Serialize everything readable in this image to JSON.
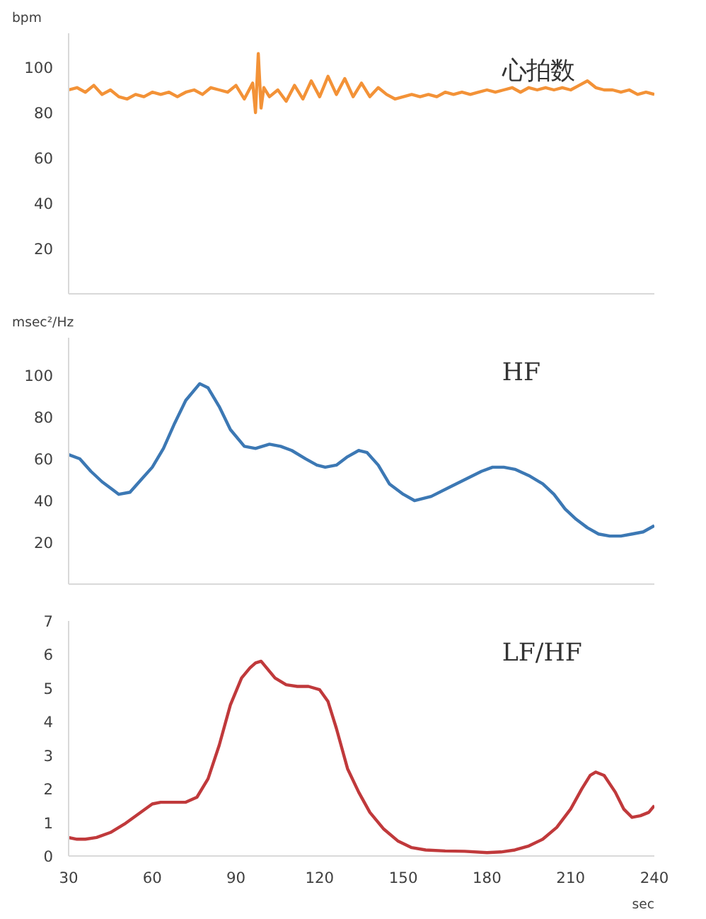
{
  "chart_data": [
    {
      "type": "line",
      "title": "心拍数",
      "ylabel": "bpm",
      "color": "#f39237",
      "xlim": [
        30,
        240
      ],
      "ylim": [
        0,
        115
      ],
      "yticks": [
        20,
        40,
        60,
        80,
        100
      ],
      "tick_labels": "y",
      "grid": false,
      "line_style": "solid",
      "x": [
        30,
        33,
        36,
        39,
        42,
        45,
        48,
        51,
        54,
        57,
        60,
        63,
        66,
        69,
        72,
        75,
        78,
        81,
        84,
        87,
        90,
        93,
        96,
        97,
        98,
        99,
        100,
        102,
        105,
        108,
        111,
        114,
        117,
        120,
        123,
        126,
        129,
        132,
        135,
        138,
        141,
        144,
        147,
        150,
        153,
        156,
        159,
        162,
        165,
        168,
        171,
        174,
        177,
        180,
        183,
        186,
        189,
        192,
        195,
        198,
        201,
        204,
        207,
        210,
        213,
        216,
        219,
        222,
        225,
        228,
        231,
        234,
        237,
        240
      ],
      "values": [
        90,
        91,
        89,
        92,
        88,
        90,
        87,
        86,
        88,
        87,
        89,
        88,
        89,
        87,
        89,
        90,
        88,
        91,
        90,
        89,
        92,
        86,
        93,
        80,
        106,
        82,
        91,
        87,
        90,
        85,
        92,
        86,
        94,
        87,
        96,
        88,
        95,
        87,
        93,
        87,
        91,
        88,
        86,
        87,
        88,
        87,
        88,
        87,
        89,
        88,
        89,
        88,
        89,
        90,
        89,
        90,
        91,
        89,
        91,
        90,
        91,
        90,
        91,
        90,
        92,
        94,
        91,
        90,
        90,
        89,
        90,
        88,
        89,
        88
      ]
    },
    {
      "type": "line",
      "title": "HF",
      "ylabel": "msec²/Hz",
      "color": "#3c78b4",
      "xlim": [
        30,
        240
      ],
      "ylim": [
        0,
        118
      ],
      "yticks": [
        20,
        40,
        60,
        80,
        100
      ],
      "tick_labels": "y",
      "grid": false,
      "line_style": "solid",
      "x": [
        30,
        34,
        38,
        42,
        46,
        48,
        52,
        56,
        60,
        64,
        68,
        72,
        77,
        80,
        84,
        88,
        93,
        97,
        102,
        106,
        110,
        115,
        119,
        122,
        126,
        130,
        134,
        137,
        141,
        145,
        150,
        154,
        160,
        166,
        172,
        178,
        182,
        186,
        190,
        195,
        200,
        204,
        208,
        212,
        216,
        220,
        224,
        228,
        232,
        236,
        240
      ],
      "values": [
        62,
        60,
        54,
        49,
        45,
        43,
        44,
        50,
        56,
        65,
        77,
        88,
        96,
        94,
        85,
        74,
        66,
        65,
        67,
        66,
        64,
        60,
        57,
        56,
        57,
        61,
        64,
        63,
        57,
        48,
        43,
        40,
        42,
        46,
        50,
        54,
        56,
        56,
        55,
        52,
        48,
        43,
        36,
        31,
        27,
        24,
        23,
        23,
        24,
        25,
        28
      ]
    },
    {
      "type": "line",
      "title": "LF/HF",
      "xlabel": "sec",
      "color": "#c0393b",
      "xlim": [
        30,
        240
      ],
      "ylim": [
        0,
        7
      ],
      "xticks": [
        30,
        60,
        90,
        120,
        150,
        180,
        210,
        240
      ],
      "yticks": [
        0,
        1,
        2,
        3,
        4,
        5,
        6,
        7
      ],
      "grid": false,
      "line_style": "solid",
      "x": [
        30,
        33,
        36,
        40,
        45,
        50,
        55,
        60,
        63,
        67,
        72,
        76,
        80,
        84,
        88,
        92,
        95,
        97,
        99,
        101,
        104,
        108,
        112,
        116,
        120,
        123,
        126,
        130,
        134,
        138,
        143,
        148,
        153,
        158,
        165,
        172,
        180,
        185,
        190,
        195,
        200,
        205,
        210,
        214,
        217,
        219,
        222,
        226,
        229,
        232,
        235,
        238,
        240
      ],
      "values": [
        0.55,
        0.5,
        0.5,
        0.55,
        0.7,
        0.95,
        1.25,
        1.55,
        1.6,
        1.6,
        1.6,
        1.75,
        2.3,
        3.3,
        4.5,
        5.3,
        5.6,
        5.75,
        5.8,
        5.6,
        5.3,
        5.1,
        5.05,
        5.05,
        4.95,
        4.6,
        3.8,
        2.6,
        1.9,
        1.3,
        0.8,
        0.45,
        0.25,
        0.18,
        0.15,
        0.14,
        0.1,
        0.12,
        0.18,
        0.3,
        0.5,
        0.85,
        1.4,
        2.0,
        2.4,
        2.5,
        2.4,
        1.9,
        1.4,
        1.15,
        1.2,
        1.3,
        1.5
      ]
    }
  ]
}
